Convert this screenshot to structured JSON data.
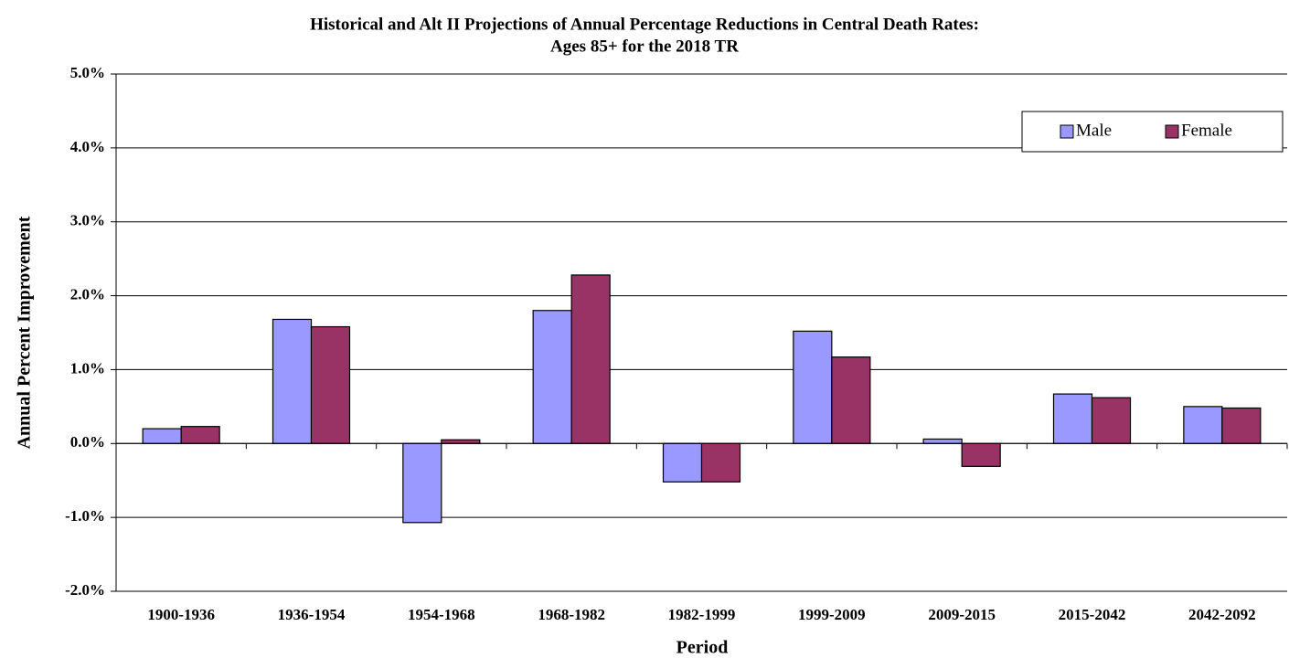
{
  "chart_data": {
    "type": "bar",
    "title": [
      "Historical and Alt II Projections of Annual Percentage Reductions in Central Death Rates:",
      "Ages 85+ for the 2018 TR"
    ],
    "xlabel": "Period",
    "ylabel": "Annual  Percent  Improvement",
    "categories": [
      "1900-1936",
      "1936-1954",
      "1954-1968",
      "1968-1982",
      "1982-1999",
      "1999-2009",
      "2009-2015",
      "2015-2042",
      "2042-2092"
    ],
    "series": [
      {
        "name": "Male",
        "color": "#9999ff",
        "values": [
          0.2,
          1.68,
          -1.07,
          1.8,
          -0.52,
          1.52,
          0.06,
          0.67,
          0.5
        ]
      },
      {
        "name": "Female",
        "color": "#993366",
        "values": [
          0.23,
          1.58,
          0.05,
          2.28,
          -0.52,
          1.17,
          -0.31,
          0.62,
          0.48
        ]
      }
    ],
    "ylim": [
      -2,
      5
    ],
    "yticks": [
      {
        "value": -2,
        "label": "-2.0%"
      },
      {
        "value": -1,
        "label": "-1.0%"
      },
      {
        "value": 0,
        "label": "0.0%"
      },
      {
        "value": 1,
        "label": "1.0%"
      },
      {
        "value": 2,
        "label": "2.0%"
      },
      {
        "value": 3,
        "label": "3.0%"
      },
      {
        "value": 4,
        "label": "4.0%"
      },
      {
        "value": 5,
        "label": "5.0%"
      }
    ],
    "grid": true,
    "legend": "upper right"
  }
}
